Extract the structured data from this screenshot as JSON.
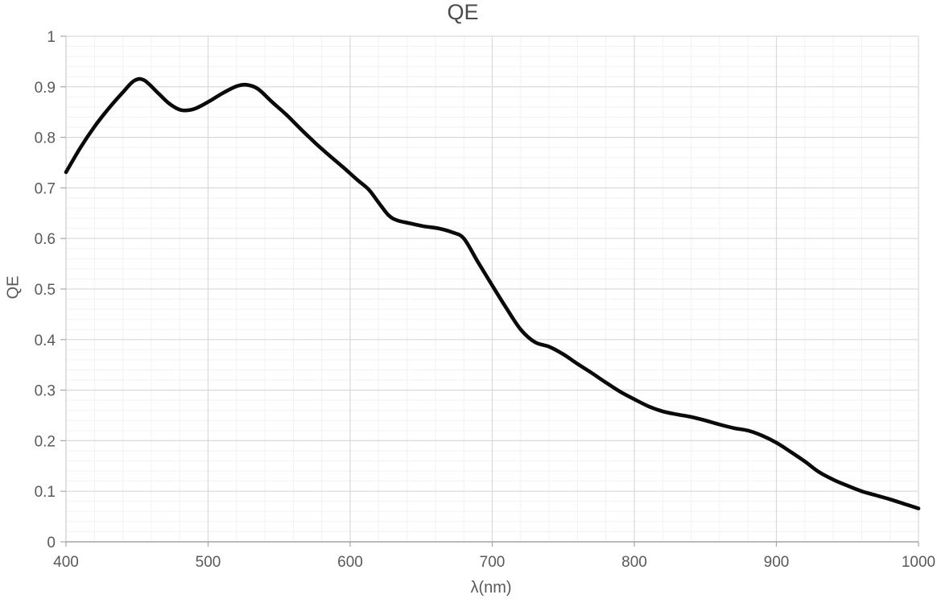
{
  "chart": {
    "title": "QE",
    "x_axis_title": "λ(nm)",
    "y_axis_title": "QE"
  },
  "chart_data": {
    "type": "line",
    "title": "QE",
    "xlabel": "λ(nm)",
    "ylabel": "QE",
    "xlim": [
      400,
      1000
    ],
    "ylim": [
      0,
      1
    ],
    "x_major_ticks": [
      400,
      500,
      600,
      700,
      800,
      900,
      1000
    ],
    "x_tick_labels": [
      "400",
      "500",
      "600",
      "700",
      "800",
      "900",
      "1000"
    ],
    "y_major_ticks": [
      0,
      0.1,
      0.2,
      0.3,
      0.4,
      0.5,
      0.6,
      0.7,
      0.8,
      0.9,
      1
    ],
    "y_tick_labels": [
      "0",
      "0.1",
      "0.2",
      "0.3",
      "0.4",
      "0.5",
      "0.6",
      "0.7",
      "0.8",
      "0.9",
      "1"
    ],
    "x_minor_unit": 20,
    "y_minor_unit": 0.02,
    "grid": "major+minor",
    "legend": "none",
    "colors": {
      "curve": "#0a0a0a",
      "major_grid": "#d9d9d9",
      "minor_grid": "#f2f2f2",
      "y_axis_line": "#d0d0d0",
      "axis_line": "#a6a6a6",
      "tick_label": "#595959",
      "title": "#4a4a4a"
    },
    "series": [
      {
        "name": "QE",
        "points": [
          [
            400,
            0.731
          ],
          [
            410,
            0.779
          ],
          [
            420,
            0.821
          ],
          [
            430,
            0.857
          ],
          [
            440,
            0.889
          ],
          [
            448,
            0.912
          ],
          [
            455,
            0.913
          ],
          [
            465,
            0.887
          ],
          [
            473,
            0.866
          ],
          [
            481,
            0.854
          ],
          [
            490,
            0.856
          ],
          [
            500,
            0.87
          ],
          [
            510,
            0.887
          ],
          [
            520,
            0.901
          ],
          [
            527,
            0.904
          ],
          [
            535,
            0.896
          ],
          [
            545,
            0.87
          ],
          [
            555,
            0.845
          ],
          [
            565,
            0.817
          ],
          [
            575,
            0.79
          ],
          [
            585,
            0.765
          ],
          [
            595,
            0.741
          ],
          [
            605,
            0.716
          ],
          [
            613,
            0.697
          ],
          [
            620,
            0.671
          ],
          [
            627,
            0.646
          ],
          [
            633,
            0.636
          ],
          [
            642,
            0.63
          ],
          [
            652,
            0.624
          ],
          [
            662,
            0.62
          ],
          [
            672,
            0.612
          ],
          [
            680,
            0.6
          ],
          [
            690,
            0.553
          ],
          [
            700,
            0.507
          ],
          [
            710,
            0.462
          ],
          [
            720,
            0.42
          ],
          [
            730,
            0.395
          ],
          [
            740,
            0.386
          ],
          [
            750,
            0.371
          ],
          [
            760,
            0.352
          ],
          [
            770,
            0.334
          ],
          [
            780,
            0.315
          ],
          [
            790,
            0.297
          ],
          [
            800,
            0.282
          ],
          [
            810,
            0.268
          ],
          [
            820,
            0.258
          ],
          [
            830,
            0.252
          ],
          [
            840,
            0.247
          ],
          [
            850,
            0.24
          ],
          [
            860,
            0.232
          ],
          [
            870,
            0.225
          ],
          [
            880,
            0.22
          ],
          [
            890,
            0.21
          ],
          [
            900,
            0.196
          ],
          [
            910,
            0.178
          ],
          [
            920,
            0.159
          ],
          [
            930,
            0.138
          ],
          [
            940,
            0.123
          ],
          [
            950,
            0.111
          ],
          [
            960,
            0.1
          ],
          [
            970,
            0.092
          ],
          [
            980,
            0.084
          ],
          [
            990,
            0.075
          ],
          [
            1000,
            0.066
          ]
        ]
      }
    ]
  }
}
